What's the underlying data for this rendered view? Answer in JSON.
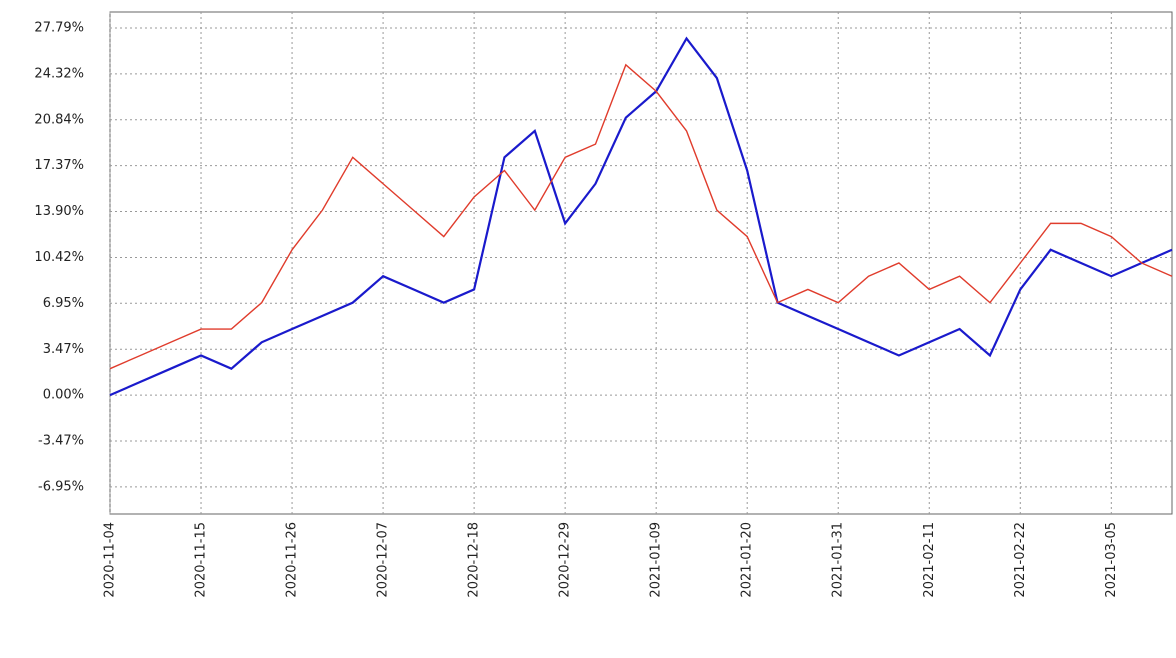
{
  "chart_data": {
    "type": "line",
    "categories": [
      "2020-11-04",
      null,
      null,
      "2020-11-15",
      null,
      null,
      "2020-11-26",
      null,
      null,
      "2020-12-07",
      null,
      null,
      "2020-12-18",
      null,
      null,
      "2020-12-29",
      null,
      null,
      "2021-01-09",
      null,
      null,
      "2021-01-20",
      null,
      null,
      "2021-01-31",
      null,
      null,
      "2021-02-11",
      null,
      null,
      "2021-02-22",
      null,
      null,
      "2021-03-05",
      null,
      null
    ],
    "series": [
      {
        "color": "#1a1acc",
        "values": [
          0,
          1,
          2,
          3,
          2,
          4,
          5,
          6,
          7,
          9,
          8,
          7,
          8,
          18,
          20,
          13,
          16,
          21,
          23,
          27,
          24,
          17,
          7,
          6,
          5,
          4,
          3,
          4,
          5,
          3,
          8,
          11,
          10,
          9,
          10,
          11
        ]
      },
      {
        "color": "#e03c2c",
        "values": [
          2,
          3,
          4,
          5,
          5,
          7,
          11,
          14,
          18,
          16,
          14,
          12,
          15,
          17,
          14,
          18,
          19,
          25,
          23,
          20,
          14,
          12,
          7,
          8,
          7,
          9,
          10,
          8,
          9,
          7,
          10,
          13,
          13,
          12,
          10,
          9
        ]
      }
    ],
    "ylim": [
      -9,
      29
    ],
    "yticks": [
      {
        "value": -6.95,
        "label": "-6.95%"
      },
      {
        "value": -3.47,
        "label": "-3.47%"
      },
      {
        "value": 0,
        "label": "0.00%"
      },
      {
        "value": 3.47,
        "label": "3.47%"
      },
      {
        "value": 6.95,
        "label": "6.95%"
      },
      {
        "value": 10.42,
        "label": "10.42%"
      },
      {
        "value": 13.9,
        "label": "13.90%"
      },
      {
        "value": 17.37,
        "label": "17.37%"
      },
      {
        "value": 20.84,
        "label": "20.84%"
      },
      {
        "value": 24.32,
        "label": "24.32%"
      },
      {
        "value": 27.79,
        "label": "27.79%"
      }
    ],
    "grid": true
  }
}
